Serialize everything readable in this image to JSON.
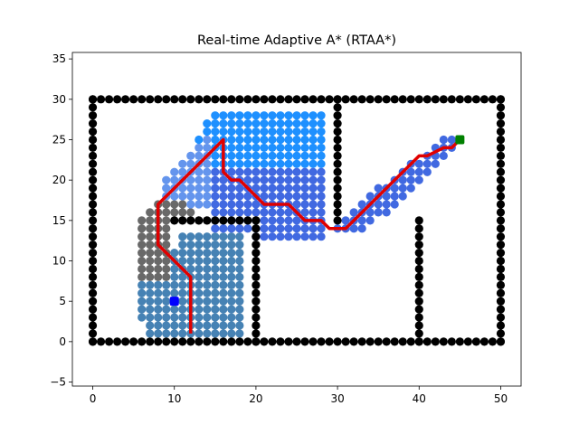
{
  "chart_data": {
    "type": "scatter",
    "title": "Real-time Adaptive A* (RTAA*)",
    "xlabel": "",
    "ylabel": "",
    "xlim": [
      -2.5,
      52.5
    ],
    "ylim": [
      -5.5,
      35.8
    ],
    "xticks": [
      0,
      10,
      20,
      30,
      40,
      50
    ],
    "yticks": [
      -5,
      0,
      5,
      10,
      15,
      20,
      25,
      30,
      35
    ],
    "grid": false,
    "start": {
      "x": 10,
      "y": 5,
      "color": "#0000ff"
    },
    "goal": {
      "x": 45,
      "y": 25,
      "color": "#008000"
    },
    "colors": {
      "obstacle": "#000000",
      "explored_gray": "#696969",
      "explored_steelblue": "#4682b4",
      "explored_cornflower": "#6495ed",
      "explored_royalblue": "#4169e1",
      "explored_dodgerblue": "#1e90ff",
      "path": "#e00000"
    },
    "obstacles": {
      "boundary": {
        "x0": 0,
        "x1": 50,
        "y0": 0,
        "y1": 30
      },
      "walls": [
        {
          "x": [
            20,
            20
          ],
          "y": [
            0,
            15
          ]
        },
        {
          "x": [
            10,
            20
          ],
          "y": [
            15,
            15
          ]
        },
        {
          "x": [
            30,
            30
          ],
          "y": [
            15,
            30
          ]
        },
        {
          "x": [
            40,
            40
          ],
          "y": [
            0,
            15
          ]
        }
      ]
    },
    "explored_regions": [
      {
        "color": "#696969",
        "polygon": [
          [
            6,
            8
          ],
          [
            6,
            15
          ],
          [
            8,
            18
          ],
          [
            11,
            18
          ],
          [
            13,
            16
          ],
          [
            15,
            15
          ],
          [
            10,
            15
          ],
          [
            10,
            8
          ]
        ]
      },
      {
        "color": "#4682b4",
        "polygon": [
          [
            7,
            1
          ],
          [
            19,
            1
          ],
          [
            19,
            14
          ],
          [
            11,
            14
          ],
          [
            11,
            12
          ],
          [
            9,
            10
          ],
          [
            7,
            10
          ],
          [
            6,
            8
          ],
          [
            6,
            3
          ]
        ]
      },
      {
        "color": "#6495ed",
        "polygon": [
          [
            9,
            16
          ],
          [
            9,
            21
          ],
          [
            13,
            25
          ],
          [
            15,
            27
          ],
          [
            15,
            22
          ],
          [
            15,
            17
          ],
          [
            12,
            16
          ]
        ]
      },
      {
        "color": "#1e90ff",
        "polygon": [
          [
            13,
            25
          ],
          [
            15,
            29
          ],
          [
            29,
            29
          ],
          [
            29,
            22
          ],
          [
            15,
            22
          ]
        ]
      },
      {
        "color": "#4169e1",
        "polygon": [
          [
            15,
            22
          ],
          [
            15,
            14
          ],
          [
            20,
            13
          ],
          [
            29,
            13
          ],
          [
            29,
            22
          ]
        ]
      },
      {
        "color": "#4169e1",
        "polygon": [
          [
            29,
            14
          ],
          [
            34,
            14
          ],
          [
            43,
            23
          ],
          [
            45,
            25
          ],
          [
            44,
            26
          ],
          [
            40,
            23
          ],
          [
            31,
            16
          ],
          [
            30,
            14
          ]
        ]
      }
    ],
    "path": {
      "x": [
        12,
        12,
        10,
        8,
        8,
        12,
        16,
        16,
        17,
        18,
        21,
        24,
        26,
        28,
        29,
        31,
        33,
        35,
        37,
        38,
        40,
        41,
        43,
        44,
        45
      ],
      "y": [
        1,
        8,
        10,
        12,
        17,
        21,
        25,
        21,
        20,
        20,
        17,
        17,
        15,
        15,
        14,
        14,
        16,
        18,
        20,
        21,
        23,
        23,
        24,
        24,
        25
      ]
    }
  }
}
